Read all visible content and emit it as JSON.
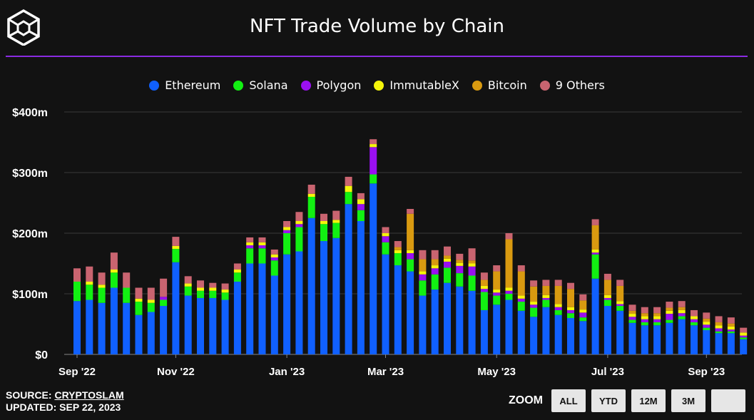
{
  "header": {
    "title": "NFT Trade Volume by Chain"
  },
  "legend": [
    {
      "label": "Ethereum",
      "color": "#1060ff"
    },
    {
      "label": "Solana",
      "color": "#12f012"
    },
    {
      "label": "Polygon",
      "color": "#9a10f0"
    },
    {
      "label": "ImmutableX",
      "color": "#f5f50a"
    },
    {
      "label": "Bitcoin",
      "color": "#d99a10"
    },
    {
      "label": "9 Others",
      "color": "#c96470"
    }
  ],
  "footer": {
    "source_label": "SOURCE: ",
    "source_link": "CRYPTOSLAM",
    "updated": "UPDATED: SEP 22, 2023"
  },
  "zoom": {
    "label": "ZOOM",
    "buttons": [
      "ALL",
      "YTD",
      "12M",
      "3M",
      ""
    ]
  },
  "chart_data": {
    "type": "bar",
    "stacked": true,
    "title": "NFT Trade Volume by Chain",
    "y_ticks": [
      "$0",
      "$100m",
      "$200m",
      "$300m",
      "$400m"
    ],
    "ylim": [
      0,
      400
    ],
    "y_unit": "$m",
    "x_ticks": [
      "Sep '22",
      "Nov '22",
      "Jan '23",
      "Mar '23",
      "May '23",
      "Jul '23",
      "Sep '23"
    ],
    "x_tick_bar_index": [
      0,
      8,
      17,
      25,
      34,
      43,
      51
    ],
    "legend_position": "top-center",
    "grid": true,
    "series": [
      {
        "name": "Ethereum",
        "color": "#1060ff",
        "values": [
          88,
          90,
          85,
          110,
          85,
          65,
          70,
          80,
          152,
          97,
          93,
          93,
          90,
          120,
          150,
          150,
          130,
          165,
          170,
          225,
          187,
          192,
          248,
          220,
          282,
          165,
          147,
          137,
          97,
          107,
          118,
          112,
          105,
          73,
          82,
          90,
          72,
          62,
          78,
          65,
          60,
          55,
          125,
          80,
          72,
          52,
          48,
          48,
          52,
          58,
          48,
          40,
          35,
          35,
          25
        ]
      },
      {
        "name": "Solana",
        "color": "#12f012",
        "values": [
          32,
          25,
          25,
          25,
          25,
          22,
          15,
          10,
          22,
          15,
          12,
          12,
          12,
          15,
          25,
          25,
          25,
          35,
          40,
          35,
          28,
          25,
          20,
          18,
          15,
          20,
          20,
          20,
          25,
          25,
          25,
          22,
          25,
          30,
          15,
          10,
          15,
          15,
          12,
          8,
          8,
          6,
          40,
          10,
          8,
          5,
          5,
          5,
          5,
          5,
          5,
          4,
          3,
          3,
          3
        ]
      },
      {
        "name": "Polygon",
        "color": "#9a10f0",
        "values": [
          0,
          0,
          0,
          0,
          0,
          0,
          0,
          5,
          0,
          0,
          0,
          0,
          0,
          0,
          5,
          5,
          5,
          5,
          5,
          0,
          0,
          0,
          0,
          10,
          45,
          10,
          0,
          10,
          10,
          10,
          10,
          12,
          15,
          5,
          5,
          5,
          5,
          5,
          3,
          5,
          5,
          8,
          3,
          3,
          3,
          5,
          5,
          5,
          10,
          5,
          5,
          5,
          5,
          3,
          3
        ]
      },
      {
        "name": "ImmutableX",
        "color": "#f5f50a",
        "values": [
          0,
          5,
          5,
          5,
          0,
          5,
          5,
          0,
          5,
          5,
          5,
          5,
          5,
          5,
          5,
          5,
          5,
          5,
          5,
          5,
          5,
          5,
          10,
          8,
          5,
          5,
          5,
          5,
          5,
          5,
          5,
          5,
          5,
          5,
          5,
          5,
          5,
          5,
          5,
          5,
          5,
          5,
          5,
          5,
          5,
          5,
          5,
          5,
          5,
          5,
          5,
          5,
          5,
          5,
          5
        ]
      },
      {
        "name": "Bitcoin",
        "color": "#d99a10",
        "values": [
          0,
          0,
          0,
          0,
          0,
          0,
          0,
          0,
          0,
          0,
          0,
          0,
          0,
          0,
          0,
          0,
          0,
          0,
          0,
          0,
          0,
          0,
          0,
          0,
          0,
          0,
          5,
          60,
          20,
          10,
          5,
          5,
          5,
          10,
          30,
          80,
          40,
          25,
          15,
          30,
          30,
          15,
          40,
          25,
          25,
          5,
          5,
          5,
          5,
          5,
          0,
          5,
          5,
          5,
          0
        ]
      },
      {
        "name": "9 Others",
        "color": "#c96470",
        "values": [
          22,
          25,
          20,
          28,
          25,
          18,
          20,
          30,
          15,
          12,
          12,
          8,
          10,
          10,
          8,
          8,
          8,
          10,
          15,
          15,
          12,
          15,
          15,
          10,
          8,
          10,
          10,
          8,
          15,
          15,
          15,
          10,
          20,
          12,
          10,
          10,
          10,
          10,
          10,
          10,
          10,
          10,
          10,
          10,
          10,
          10,
          10,
          10,
          10,
          10,
          10,
          10,
          10,
          10,
          8
        ]
      }
    ]
  }
}
